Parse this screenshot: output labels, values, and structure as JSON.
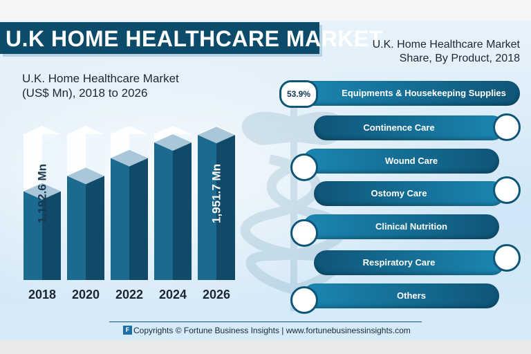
{
  "header": {
    "title": "U.K HOME HEALTHCARE MARKET"
  },
  "bar_section": {
    "title_line1": "U.K. Home Healthcare Market",
    "title_line2": "(US$ Mn), 2018 to 2026"
  },
  "share_section": {
    "title_line1": "U.K. Home Healthcare Market",
    "title_line2": "Share, By Product, 2018",
    "items": [
      {
        "label": "Equipments & Housekeeping Supplies",
        "value": "53.9%"
      },
      {
        "label": "Continence Care"
      },
      {
        "label": "Wound Care"
      },
      {
        "label": "Ostomy Care"
      },
      {
        "label": "Clinical Nutrition"
      },
      {
        "label": "Respiratory Care"
      },
      {
        "label": "Others"
      }
    ]
  },
  "footer": {
    "text": "Copyrights © Fortune Business Insights | www.fortunebusinessinsights.com"
  },
  "colors": {
    "dark_blue": "#0d4b6b",
    "mid_blue": "#1b87b3",
    "bar_dark": "#175778"
  },
  "chart_data": {
    "type": "bar",
    "categories": [
      "2018",
      "2020",
      "2022",
      "2024",
      "2026"
    ],
    "values": [
      1192.6,
      1400,
      1640,
      1850,
      1951.7
    ],
    "value_labels": [
      "1,192.6 Mn",
      "",
      "",
      "",
      "1,951.7 Mn"
    ],
    "title": "U.K. Home Healthcare Market (US$ Mn), 2018 to 2026",
    "xlabel": "",
    "ylabel": "",
    "grid": false
  }
}
